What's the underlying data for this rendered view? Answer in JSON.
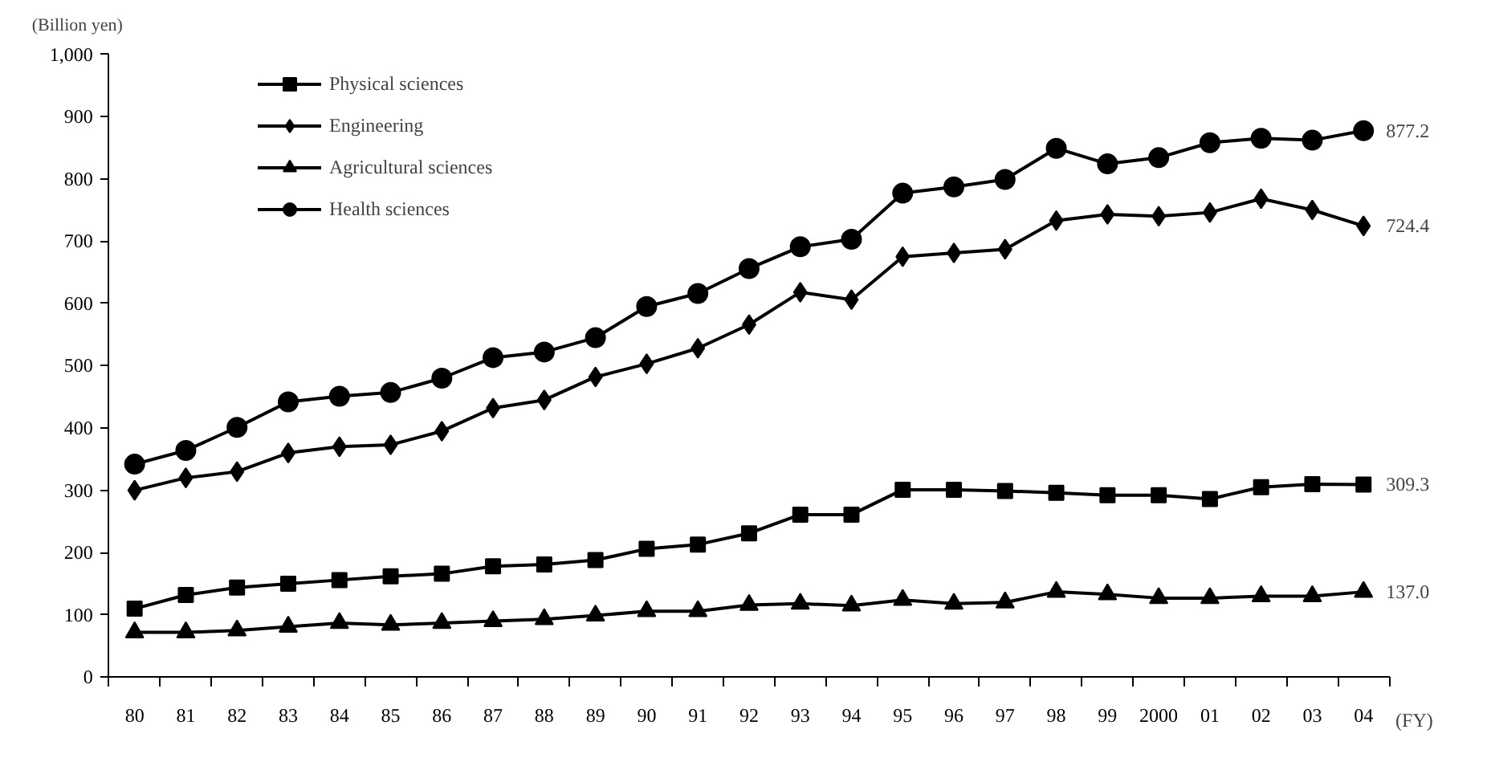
{
  "chart_data": {
    "type": "line",
    "ylabel": "(Billion yen)",
    "xlabel": "(FY)",
    "categories": [
      "80",
      "81",
      "82",
      "83",
      "84",
      "85",
      "86",
      "87",
      "88",
      "89",
      "90",
      "91",
      "92",
      "93",
      "94",
      "95",
      "96",
      "97",
      "98",
      "99",
      "2000",
      "01",
      "02",
      "03",
      "04"
    ],
    "series": [
      {
        "name": "Physical sciences",
        "color": "#000000",
        "marker": "square",
        "values": [
          110,
          132,
          144,
          150,
          156,
          162,
          166,
          178,
          181,
          188,
          206,
          213,
          231,
          261,
          261,
          301,
          301,
          299,
          296,
          292,
          292,
          286,
          305,
          310,
          309.3
        ]
      },
      {
        "name": "Engineering",
        "color": "#000000",
        "marker": "diamond",
        "values": [
          300,
          320,
          330,
          360,
          370,
          373,
          395,
          432,
          445,
          482,
          503,
          528,
          566,
          618,
          606,
          675,
          681,
          687,
          733,
          743,
          740,
          746,
          768,
          750,
          724.4
        ]
      },
      {
        "name": "Agricultural sciences",
        "color": "#000000",
        "marker": "triangle",
        "values": [
          72,
          72,
          75,
          81,
          87,
          84,
          87,
          90,
          93,
          99,
          106,
          106,
          116,
          118,
          115,
          124,
          118,
          120,
          137,
          133,
          127,
          127,
          130,
          130,
          137.0
        ]
      },
      {
        "name": "Health sciences",
        "color": "#000000",
        "marker": "circle",
        "values": [
          342,
          364,
          401,
          442,
          451,
          457,
          480,
          513,
          522,
          545,
          595,
          616,
          656,
          691,
          703,
          777,
          787,
          799,
          849,
          824,
          834,
          858,
          865,
          862,
          877.2
        ]
      }
    ],
    "annotations": [
      {
        "text": "877.2",
        "x": "04",
        "y": 877.2
      },
      {
        "text": "724.4",
        "x": "04",
        "y": 724.4
      },
      {
        "text": "309.3",
        "x": "04",
        "y": 309.3
      },
      {
        "text": "137.0",
        "x": "04",
        "y": 137.0
      }
    ],
    "ylim": [
      0,
      1000
    ],
    "yticks": [
      0,
      100,
      200,
      300,
      400,
      500,
      600,
      700,
      800,
      900,
      {
        "value": 1000,
        "label": "1,000"
      }
    ],
    "grid": false,
    "legend": "top left",
    "line_style": "solid"
  }
}
